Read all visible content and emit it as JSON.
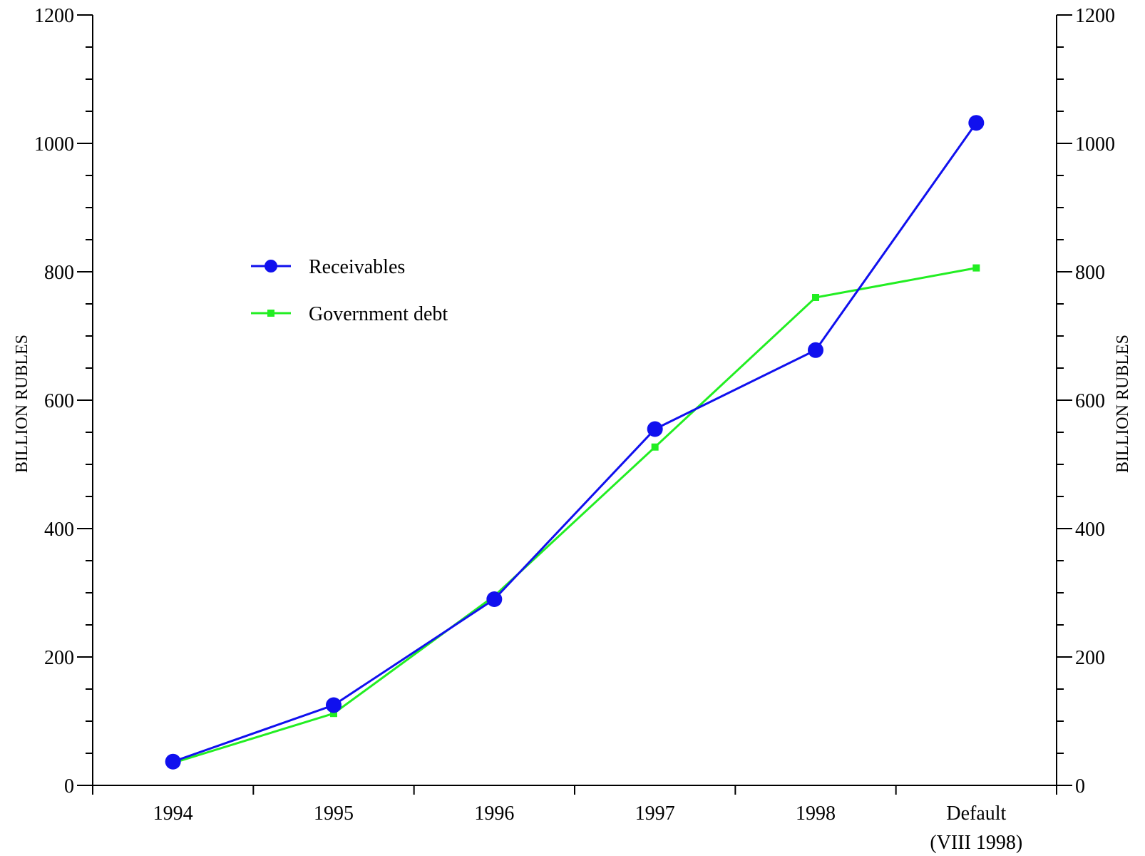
{
  "chart_data": {
    "type": "line",
    "categories": [
      "1994",
      "1995",
      "1996",
      "1997",
      "1998",
      "Default"
    ],
    "category_sublabels": [
      "",
      "",
      "",
      "",
      "",
      "(VIII 1998)"
    ],
    "series": [
      {
        "name": "Receivables",
        "values": [
          37,
          125,
          290,
          555,
          678,
          1032
        ],
        "color": "#1010ee",
        "marker": "circle"
      },
      {
        "name": "Government debt",
        "values": [
          35,
          112,
          295,
          527,
          760,
          806
        ],
        "color": "#22ee22",
        "marker": "square"
      }
    ],
    "ylabel": "BILLION RUBLES",
    "ylabel_right": "BILLION RUBLES",
    "ylim": [
      0,
      1200
    ],
    "yticks": [
      0,
      200,
      400,
      600,
      800,
      1000,
      1200
    ],
    "grid": false,
    "legend_position": "upper-left inside"
  }
}
